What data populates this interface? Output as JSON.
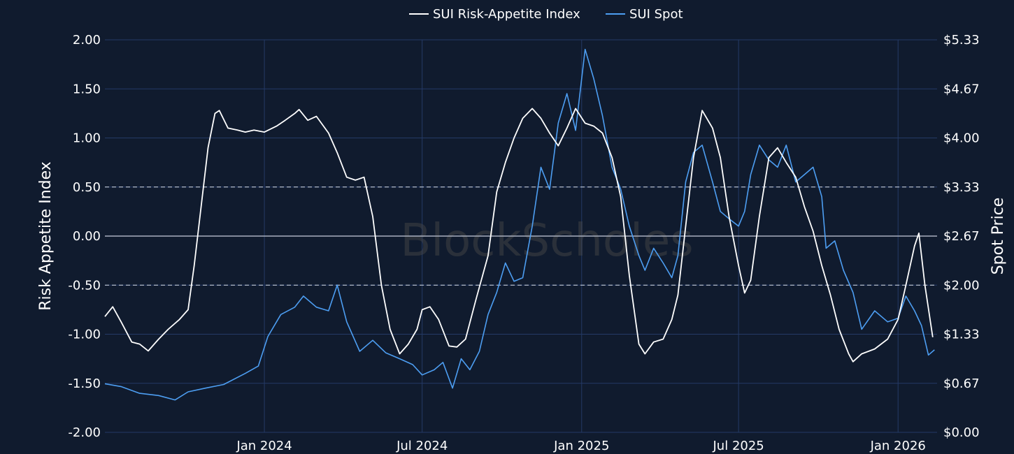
{
  "chart_data": {
    "type": "line",
    "watermark": "BlockScholes",
    "legend": {
      "placement": "top-center",
      "entries": [
        "SUI Risk-Appetite Index",
        "SUI Spot"
      ]
    },
    "left_axis": {
      "label": "Risk Appetite Index",
      "ylim": [
        -2.0,
        2.0
      ],
      "ticks": [
        "-2.00",
        "-1.50",
        "-1.00",
        "-0.50",
        "0.00",
        "0.50",
        "1.00",
        "1.50",
        "2.00"
      ]
    },
    "right_axis": {
      "label": "Spot Price",
      "ylim": [
        0.0,
        5.33
      ],
      "ticks": [
        "$0.00",
        "$0.67",
        "$1.33",
        "$2.00",
        "$2.67",
        "$3.33",
        "$4.00",
        "$4.67",
        "$5.33"
      ]
    },
    "x_axis": {
      "range": [
        "2023-07-01",
        "2026-02-15"
      ],
      "ticks": [
        {
          "date": "2024-01-01",
          "label": "Jan 2024"
        },
        {
          "date": "2024-07-01",
          "label": "Jul 2024"
        },
        {
          "date": "2025-01-01",
          "label": "Jan 2025"
        },
        {
          "date": "2025-07-01",
          "label": "Jul 2025"
        },
        {
          "date": "2026-01-01",
          "label": "Jan 2026"
        }
      ]
    },
    "reference_lines": [
      {
        "value": 0.5,
        "style": "dashed"
      },
      {
        "value": -0.5,
        "style": "dashed"
      },
      {
        "value": 0.0,
        "style": "solid"
      }
    ],
    "grid": true,
    "colors": {
      "background": "#101b2e",
      "grid": "#243a66",
      "index_line": "#ffffff",
      "spot_line": "#4d9ef2"
    },
    "series": [
      {
        "name": "SUI Risk-Appetite Index",
        "axis": "left",
        "color": "#ffffff",
        "points": [
          [
            "2023-07-01",
            -0.82
          ],
          [
            "2023-07-10",
            -0.72
          ],
          [
            "2023-07-20",
            -0.88
          ],
          [
            "2023-08-01",
            -1.08
          ],
          [
            "2023-08-10",
            -1.1
          ],
          [
            "2023-08-20",
            -1.17
          ],
          [
            "2023-09-01",
            -1.05
          ],
          [
            "2023-09-12",
            -0.95
          ],
          [
            "2023-09-25",
            -0.85
          ],
          [
            "2023-10-05",
            -0.75
          ],
          [
            "2023-10-12",
            -0.3
          ],
          [
            "2023-10-20",
            0.3
          ],
          [
            "2023-10-28",
            0.9
          ],
          [
            "2023-11-05",
            1.25
          ],
          [
            "2023-11-10",
            1.28
          ],
          [
            "2023-11-20",
            1.1
          ],
          [
            "2023-12-01",
            1.08
          ],
          [
            "2023-12-10",
            1.06
          ],
          [
            "2023-12-20",
            1.08
          ],
          [
            "2024-01-01",
            1.06
          ],
          [
            "2024-01-15",
            1.12
          ],
          [
            "2024-01-25",
            1.18
          ],
          [
            "2024-02-05",
            1.25
          ],
          [
            "2024-02-10",
            1.29
          ],
          [
            "2024-02-20",
            1.18
          ],
          [
            "2024-03-01",
            1.22
          ],
          [
            "2024-03-15",
            1.05
          ],
          [
            "2024-03-25",
            0.85
          ],
          [
            "2024-04-05",
            0.6
          ],
          [
            "2024-04-15",
            0.57
          ],
          [
            "2024-04-25",
            0.6
          ],
          [
            "2024-05-05",
            0.2
          ],
          [
            "2024-05-15",
            -0.5
          ],
          [
            "2024-05-25",
            -0.95
          ],
          [
            "2024-06-05",
            -1.2
          ],
          [
            "2024-06-15",
            -1.1
          ],
          [
            "2024-06-25",
            -0.95
          ],
          [
            "2024-07-01",
            -0.75
          ],
          [
            "2024-07-10",
            -0.72
          ],
          [
            "2024-07-20",
            -0.85
          ],
          [
            "2024-08-01",
            -1.12
          ],
          [
            "2024-08-10",
            -1.13
          ],
          [
            "2024-08-20",
            -1.05
          ],
          [
            "2024-09-01",
            -0.65
          ],
          [
            "2024-09-15",
            -0.2
          ],
          [
            "2024-09-25",
            0.45
          ],
          [
            "2024-10-05",
            0.75
          ],
          [
            "2024-10-15",
            1.0
          ],
          [
            "2024-10-25",
            1.2
          ],
          [
            "2024-11-05",
            1.3
          ],
          [
            "2024-11-15",
            1.2
          ],
          [
            "2024-11-25",
            1.05
          ],
          [
            "2024-12-05",
            0.92
          ],
          [
            "2024-12-15",
            1.1
          ],
          [
            "2024-12-25",
            1.3
          ],
          [
            "2025-01-05",
            1.15
          ],
          [
            "2025-01-15",
            1.12
          ],
          [
            "2025-01-25",
            1.05
          ],
          [
            "2025-02-05",
            0.8
          ],
          [
            "2025-02-15",
            0.4
          ],
          [
            "2025-02-25",
            -0.4
          ],
          [
            "2025-03-08",
            -1.1
          ],
          [
            "2025-03-15",
            -1.2
          ],
          [
            "2025-03-25",
            -1.08
          ],
          [
            "2025-04-05",
            -1.05
          ],
          [
            "2025-04-15",
            -0.85
          ],
          [
            "2025-04-22",
            -0.6
          ],
          [
            "2025-05-01",
            0.1
          ],
          [
            "2025-05-10",
            0.8
          ],
          [
            "2025-05-20",
            1.28
          ],
          [
            "2025-06-01",
            1.1
          ],
          [
            "2025-06-10",
            0.8
          ],
          [
            "2025-06-20",
            0.2
          ],
          [
            "2025-07-01",
            -0.3
          ],
          [
            "2025-07-08",
            -0.58
          ],
          [
            "2025-07-15",
            -0.45
          ],
          [
            "2025-07-25",
            0.2
          ],
          [
            "2025-08-05",
            0.8
          ],
          [
            "2025-08-15",
            0.9
          ],
          [
            "2025-08-25",
            0.75
          ],
          [
            "2025-09-05",
            0.6
          ],
          [
            "2025-09-15",
            0.3
          ],
          [
            "2025-09-25",
            0.05
          ],
          [
            "2025-10-05",
            -0.3
          ],
          [
            "2025-10-15",
            -0.6
          ],
          [
            "2025-10-25",
            -0.95
          ],
          [
            "2025-11-05",
            -1.2
          ],
          [
            "2025-11-10",
            -1.28
          ],
          [
            "2025-11-20",
            -1.2
          ],
          [
            "2025-12-05",
            -1.15
          ],
          [
            "2025-12-20",
            -1.05
          ],
          [
            "2026-01-01",
            -0.85
          ],
          [
            "2026-01-10",
            -0.5
          ],
          [
            "2026-01-20",
            -0.1
          ],
          [
            "2026-01-25",
            0.03
          ],
          [
            "2026-02-01",
            -0.5
          ],
          [
            "2026-02-10",
            -1.03
          ]
        ]
      },
      {
        "name": "SUI Spot",
        "axis": "right",
        "color": "#4d9ef2",
        "points": [
          [
            "2023-07-01",
            0.66
          ],
          [
            "2023-07-20",
            0.62
          ],
          [
            "2023-08-10",
            0.53
          ],
          [
            "2023-09-01",
            0.5
          ],
          [
            "2023-09-20",
            0.44
          ],
          [
            "2023-10-05",
            0.55
          ],
          [
            "2023-10-25",
            0.6
          ],
          [
            "2023-11-15",
            0.65
          ],
          [
            "2023-12-10",
            0.8
          ],
          [
            "2023-12-25",
            0.9
          ],
          [
            "2024-01-05",
            1.3
          ],
          [
            "2024-01-20",
            1.6
          ],
          [
            "2024-02-05",
            1.7
          ],
          [
            "2024-02-15",
            1.85
          ],
          [
            "2024-03-01",
            1.7
          ],
          [
            "2024-03-15",
            1.65
          ],
          [
            "2024-03-25",
            2.0
          ],
          [
            "2024-04-05",
            1.5
          ],
          [
            "2024-04-20",
            1.1
          ],
          [
            "2024-05-05",
            1.25
          ],
          [
            "2024-05-20",
            1.08
          ],
          [
            "2024-06-05",
            1.0
          ],
          [
            "2024-06-20",
            0.92
          ],
          [
            "2024-07-01",
            0.78
          ],
          [
            "2024-07-15",
            0.85
          ],
          [
            "2024-07-25",
            0.95
          ],
          [
            "2024-08-05",
            0.6
          ],
          [
            "2024-08-15",
            1.0
          ],
          [
            "2024-08-25",
            0.85
          ],
          [
            "2024-09-05",
            1.1
          ],
          [
            "2024-09-15",
            1.6
          ],
          [
            "2024-09-25",
            1.9
          ],
          [
            "2024-10-05",
            2.3
          ],
          [
            "2024-10-15",
            2.05
          ],
          [
            "2024-10-25",
            2.1
          ],
          [
            "2024-11-05",
            2.8
          ],
          [
            "2024-11-15",
            3.6
          ],
          [
            "2024-11-25",
            3.3
          ],
          [
            "2024-12-05",
            4.2
          ],
          [
            "2024-12-15",
            4.6
          ],
          [
            "2024-12-25",
            4.1
          ],
          [
            "2025-01-05",
            5.2
          ],
          [
            "2025-01-15",
            4.8
          ],
          [
            "2025-01-25",
            4.3
          ],
          [
            "2025-02-05",
            3.6
          ],
          [
            "2025-02-15",
            3.3
          ],
          [
            "2025-02-25",
            2.8
          ],
          [
            "2025-03-08",
            2.4
          ],
          [
            "2025-03-15",
            2.2
          ],
          [
            "2025-03-25",
            2.5
          ],
          [
            "2025-04-05",
            2.3
          ],
          [
            "2025-04-15",
            2.1
          ],
          [
            "2025-04-22",
            2.4
          ],
          [
            "2025-05-01",
            3.4
          ],
          [
            "2025-05-10",
            3.8
          ],
          [
            "2025-05-20",
            3.9
          ],
          [
            "2025-06-01",
            3.4
          ],
          [
            "2025-06-10",
            3.0
          ],
          [
            "2025-06-20",
            2.9
          ],
          [
            "2025-07-01",
            2.8
          ],
          [
            "2025-07-08",
            3.0
          ],
          [
            "2025-07-15",
            3.5
          ],
          [
            "2025-07-25",
            3.9
          ],
          [
            "2025-08-05",
            3.7
          ],
          [
            "2025-08-15",
            3.6
          ],
          [
            "2025-08-25",
            3.9
          ],
          [
            "2025-09-05",
            3.4
          ],
          [
            "2025-09-15",
            3.5
          ],
          [
            "2025-09-25",
            3.6
          ],
          [
            "2025-10-05",
            3.2
          ],
          [
            "2025-10-10",
            2.5
          ],
          [
            "2025-10-20",
            2.6
          ],
          [
            "2025-10-30",
            2.2
          ],
          [
            "2025-11-10",
            1.9
          ],
          [
            "2025-11-20",
            1.4
          ],
          [
            "2025-12-05",
            1.65
          ],
          [
            "2025-12-20",
            1.5
          ],
          [
            "2026-01-01",
            1.55
          ],
          [
            "2026-01-10",
            1.85
          ],
          [
            "2026-01-20",
            1.65
          ],
          [
            "2026-01-28",
            1.45
          ],
          [
            "2026-02-05",
            1.05
          ],
          [
            "2026-02-12",
            1.12
          ]
        ]
      }
    ]
  }
}
